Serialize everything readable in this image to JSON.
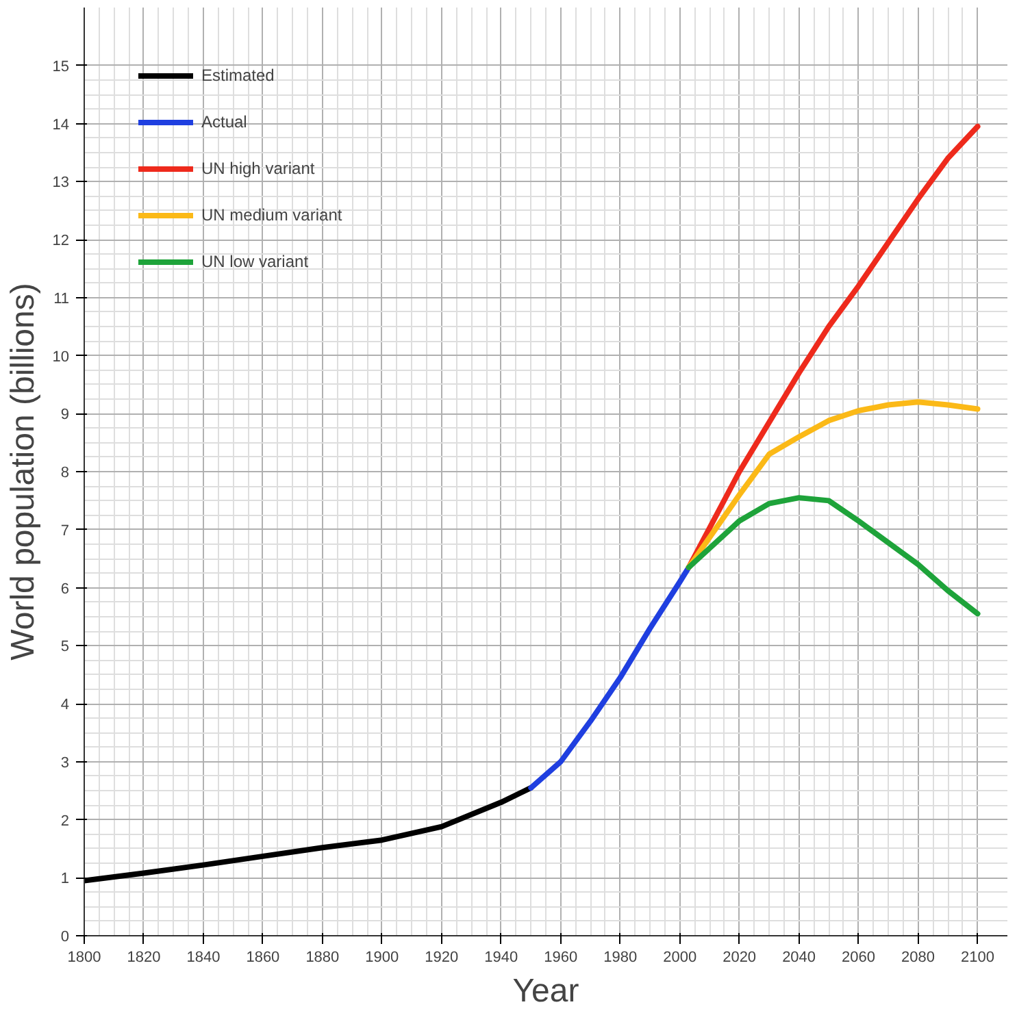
{
  "chart_data": {
    "type": "line",
    "xlabel": "Year",
    "ylabel": "World population (billions)",
    "xlim": [
      1800,
      2110
    ],
    "ylim": [
      0,
      16
    ],
    "xticks": [
      1800,
      1820,
      1840,
      1860,
      1880,
      1900,
      1920,
      1940,
      1960,
      1980,
      2000,
      2020,
      2040,
      2060,
      2080,
      2100
    ],
    "yticks": [
      0,
      1,
      2,
      3,
      4,
      5,
      6,
      7,
      8,
      9,
      10,
      11,
      12,
      13,
      14,
      15
    ],
    "grid": true,
    "legend": "top left",
    "line_style": "solid",
    "series": [
      {
        "name": "Estimated",
        "color": "#000000",
        "x": [
          1800,
          1820,
          1840,
          1860,
          1880,
          1900,
          1920,
          1940,
          1950
        ],
        "values": [
          0.95,
          1.08,
          1.22,
          1.37,
          1.52,
          1.65,
          1.88,
          2.3,
          2.55
        ]
      },
      {
        "name": "Actual",
        "color": "#1f3fe0",
        "x": [
          1950,
          1960,
          1970,
          1980,
          1990,
          2000,
          2003
        ],
        "values": [
          2.55,
          3.0,
          3.7,
          4.45,
          5.3,
          6.1,
          6.35
        ]
      },
      {
        "name": "UN high variant",
        "color": "#ee2a1c",
        "x": [
          2003,
          2020,
          2040,
          2050,
          2060,
          2080,
          2090,
          2100
        ],
        "values": [
          6.35,
          8.0,
          9.7,
          10.5,
          11.2,
          12.7,
          13.4,
          13.95
        ]
      },
      {
        "name": "UN medium variant",
        "color": "#fbb917",
        "x": [
          2003,
          2020,
          2030,
          2040,
          2050,
          2060,
          2070,
          2080,
          2090,
          2100
        ],
        "values": [
          6.35,
          7.6,
          8.3,
          8.6,
          8.88,
          9.05,
          9.15,
          9.2,
          9.15,
          9.08
        ]
      },
      {
        "name": "UN low variant",
        "color": "#1ea33a",
        "x": [
          2003,
          2020,
          2030,
          2040,
          2050,
          2060,
          2080,
          2090,
          2100
        ],
        "values": [
          6.35,
          7.15,
          7.45,
          7.55,
          7.5,
          7.15,
          6.4,
          5.95,
          5.55
        ]
      }
    ]
  }
}
